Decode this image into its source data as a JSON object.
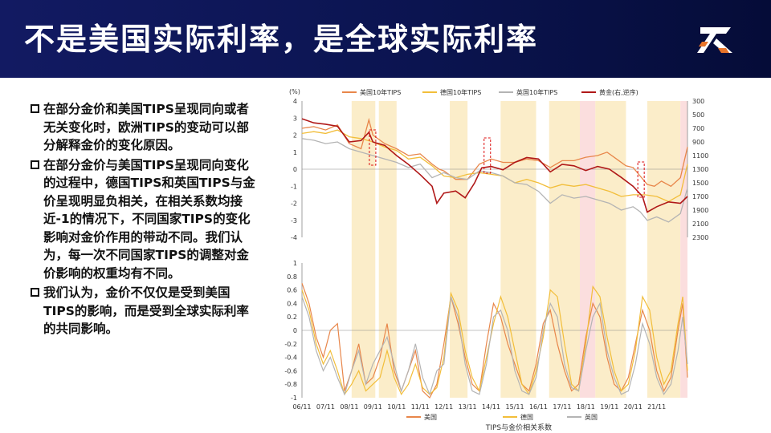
{
  "title": "不是美国实际利率，是全球实际利率",
  "logo_text": "Z",
  "bullets": [
    "在部分金价和美国TIPS呈现同向或者无关变化时，欧洲TIPS的变动可以部分解释金价的变化原因。",
    "在部分金价与美国TIPS呈现同向变化的过程中，德国TIPS和英国TIPS与金价呈现明显负相关，在相关系数均接近-1的情况下，不同国家TIPS的变化影响对金价作用的带动不同。我们认为，每一次不同国家TIPS的调整对金价影响的权重均有不同。",
    "我们认为，金价不仅仅是受到美国TIPS的影响，而是受到全球实际利率的共同影响。"
  ],
  "colors": {
    "header_bg": "#0b1450",
    "us": "#e8864a",
    "de": "#f2be3a",
    "uk": "#b4b4b4",
    "gold": "#b01818",
    "shade_yellow": "#fbedc9",
    "shade_pink": "#fbdede"
  },
  "chart_data": [
    {
      "type": "line",
      "unit_label": "(%)",
      "legend": [
        "美国10年TIPS",
        "德国10年TIPS",
        "英国10年TIPS",
        "黄金(右,逆序)"
      ],
      "x_ticks": [
        "06/11",
        "07/11",
        "08/11",
        "09/11",
        "10/11",
        "11/11",
        "12/11",
        "13/11",
        "14/11",
        "15/11",
        "16/11",
        "17/11",
        "18/11",
        "19/11",
        "20/11",
        "21/11"
      ],
      "y_left_ticks": [
        4,
        3,
        2,
        1,
        0,
        -1,
        -2,
        -3,
        -4
      ],
      "y_right_ticks": [
        300,
        500,
        700,
        900,
        1100,
        1300,
        1500,
        1700,
        1900,
        2100,
        2300
      ],
      "y_left_range": [
        -4,
        4
      ],
      "y_right_range": [
        300,
        2300
      ],
      "y_right_inverted": true,
      "x_range": [
        2006.0,
        2022.3
      ],
      "series": [
        {
          "name": "美国10年TIPS",
          "color_key": "us",
          "x": [
            2006.0,
            2006.5,
            2007.0,
            2007.5,
            2008.0,
            2008.5,
            2008.83,
            2009.0,
            2009.5,
            2010.0,
            2010.5,
            2011.0,
            2011.5,
            2011.8,
            2012.0,
            2012.5,
            2013.0,
            2013.5,
            2014.0,
            2014.5,
            2015.0,
            2015.5,
            2016.0,
            2016.5,
            2017.0,
            2017.5,
            2018.0,
            2018.5,
            2018.9,
            2019.3,
            2019.7,
            2020.0,
            2020.3,
            2020.6,
            2020.9,
            2021.2,
            2021.6,
            2022.0,
            2022.3
          ],
          "y": [
            2.4,
            2.5,
            2.3,
            2.6,
            1.5,
            1.2,
            2.9,
            2.0,
            1.5,
            1.2,
            0.8,
            0.9,
            0.3,
            0.0,
            -0.1,
            -0.6,
            -0.6,
            0.3,
            0.6,
            0.4,
            0.4,
            0.6,
            0.5,
            0.1,
            0.5,
            0.5,
            0.7,
            0.8,
            1.0,
            0.6,
            0.2,
            0.1,
            -0.4,
            -0.9,
            -1.0,
            -0.7,
            -1.0,
            -0.5,
            1.3
          ]
        },
        {
          "name": "德国10年TIPS",
          "color_key": "de",
          "x": [
            2006.0,
            2006.5,
            2007.0,
            2007.5,
            2008.0,
            2008.5,
            2009.0,
            2009.5,
            2010.0,
            2010.5,
            2011.0,
            2011.5,
            2012.0,
            2012.5,
            2013.0,
            2013.5,
            2014.0,
            2014.5,
            2015.0,
            2015.5,
            2016.0,
            2016.5,
            2017.0,
            2017.5,
            2018.0,
            2018.5,
            2019.0,
            2019.5,
            2020.0,
            2020.5,
            2021.0,
            2021.5,
            2022.0,
            2022.3
          ],
          "y": [
            2.1,
            2.2,
            2.1,
            2.3,
            1.9,
            1.8,
            1.6,
            1.3,
            1.1,
            0.6,
            0.7,
            0.2,
            -0.4,
            -0.5,
            -0.3,
            -0.2,
            -0.3,
            -0.4,
            -0.8,
            -0.6,
            -0.8,
            -1.1,
            -0.9,
            -1.0,
            -0.9,
            -1.1,
            -1.3,
            -1.6,
            -1.5,
            -1.5,
            -1.6,
            -1.9,
            -1.5,
            0.3
          ]
        },
        {
          "name": "英国10年TIPS",
          "color_key": "uk",
          "x": [
            2006.0,
            2006.5,
            2007.0,
            2007.5,
            2008.0,
            2008.5,
            2009.0,
            2009.5,
            2010.0,
            2010.5,
            2011.0,
            2011.5,
            2012.0,
            2012.5,
            2013.0,
            2013.5,
            2014.0,
            2014.5,
            2015.0,
            2015.5,
            2016.0,
            2016.5,
            2017.0,
            2017.5,
            2018.0,
            2018.5,
            2019.0,
            2019.5,
            2020.0,
            2020.3,
            2020.6,
            2021.0,
            2021.5,
            2022.0,
            2022.3
          ],
          "y": [
            1.8,
            1.7,
            1.5,
            1.6,
            1.2,
            1.0,
            0.8,
            0.6,
            0.4,
            0.1,
            0.3,
            -0.5,
            -0.2,
            -0.5,
            -0.6,
            -0.1,
            -0.2,
            -0.4,
            -0.8,
            -0.9,
            -1.3,
            -2.0,
            -1.5,
            -1.7,
            -1.6,
            -1.8,
            -2.0,
            -2.4,
            -2.2,
            -2.5,
            -3.0,
            -2.8,
            -3.1,
            -2.6,
            -1.1
          ]
        },
        {
          "name": "黄金(右,逆序)",
          "color_key": "gold",
          "axis": "right",
          "x": [
            2006.0,
            2006.5,
            2007.0,
            2007.5,
            2008.0,
            2008.5,
            2008.83,
            2009.0,
            2009.5,
            2010.0,
            2010.5,
            2011.0,
            2011.5,
            2011.7,
            2012.0,
            2012.5,
            2012.9,
            2013.3,
            2013.6,
            2014.0,
            2014.5,
            2015.0,
            2015.5,
            2016.0,
            2016.5,
            2017.0,
            2017.5,
            2018.0,
            2018.5,
            2019.0,
            2019.5,
            2020.0,
            2020.4,
            2020.6,
            2021.0,
            2021.5,
            2022.0,
            2022.3
          ],
          "y": [
            560,
            620,
            640,
            670,
            900,
            880,
            760,
            900,
            950,
            1100,
            1230,
            1380,
            1550,
            1800,
            1650,
            1620,
            1720,
            1500,
            1280,
            1260,
            1310,
            1200,
            1130,
            1150,
            1340,
            1230,
            1250,
            1320,
            1260,
            1300,
            1420,
            1550,
            1700,
            1930,
            1850,
            1780,
            1800,
            1700
          ]
        }
      ]
    },
    {
      "type": "line",
      "title": "TIPS与金价相关系数",
      "legend": [
        "美国",
        "德国",
        "英国"
      ],
      "y_ticks": [
        1,
        0.8,
        0.6,
        0.4,
        0.2,
        0,
        -0.2,
        -0.4,
        -0.6,
        -0.8,
        -1
      ],
      "y_range": [
        -1,
        1
      ],
      "x_range": [
        2006.0,
        2022.3
      ],
      "shaded_periods_yellow": [
        [
          2008.1,
          2009.1
        ],
        [
          2009.25,
          2010.0
        ],
        [
          2012.25,
          2013.0
        ],
        [
          2014.4,
          2015.9
        ],
        [
          2016.45,
          2017.75
        ],
        [
          2018.4,
          2019.7
        ],
        [
          2020.6,
          2022.0
        ]
      ],
      "shaded_periods_pink": [
        [
          2017.75,
          2018.4
        ],
        [
          2022.0,
          2022.3
        ]
      ],
      "series": [
        {
          "name": "美国",
          "color_key": "us",
          "x": [
            2006.0,
            2006.3,
            2006.6,
            2006.9,
            2007.2,
            2007.5,
            2007.8,
            2008.1,
            2008.4,
            2008.7,
            2009.0,
            2009.3,
            2009.6,
            2009.9,
            2010.2,
            2010.5,
            2010.8,
            2011.1,
            2011.4,
            2011.7,
            2012.0,
            2012.3,
            2012.6,
            2012.9,
            2013.2,
            2013.5,
            2013.8,
            2014.1,
            2014.4,
            2014.7,
            2015.0,
            2015.3,
            2015.6,
            2015.9,
            2016.2,
            2016.5,
            2016.8,
            2017.1,
            2017.4,
            2017.7,
            2018.0,
            2018.3,
            2018.6,
            2018.9,
            2019.2,
            2019.5,
            2019.8,
            2020.1,
            2020.4,
            2020.7,
            2021.0,
            2021.3,
            2021.6,
            2021.9,
            2022.1,
            2022.3
          ],
          "y": [
            0.7,
            0.4,
            -0.1,
            -0.4,
            0.0,
            0.1,
            -0.9,
            -0.6,
            -0.2,
            -0.8,
            -0.7,
            -0.4,
            0.1,
            -0.6,
            -0.9,
            -0.6,
            -0.3,
            -0.9,
            -1.0,
            -0.8,
            -0.2,
            0.5,
            0.1,
            -0.4,
            -0.8,
            -0.9,
            -0.2,
            0.4,
            0.2,
            -0.2,
            -0.5,
            -0.8,
            -0.9,
            -0.5,
            0.1,
            0.3,
            -0.2,
            -0.6,
            -0.9,
            -0.8,
            -0.1,
            0.4,
            0.2,
            -0.4,
            -0.8,
            -0.9,
            -0.7,
            -0.2,
            0.3,
            0.0,
            -0.6,
            -0.9,
            -0.7,
            0.0,
            0.4,
            -0.7
          ]
        },
        {
          "name": "德国",
          "color_key": "de",
          "x": [
            2006.0,
            2006.3,
            2006.6,
            2006.9,
            2007.2,
            2007.5,
            2007.8,
            2008.1,
            2008.4,
            2008.7,
            2009.0,
            2009.3,
            2009.6,
            2009.9,
            2010.2,
            2010.5,
            2010.8,
            2011.1,
            2011.4,
            2011.7,
            2012.0,
            2012.3,
            2012.6,
            2012.9,
            2013.2,
            2013.5,
            2013.8,
            2014.1,
            2014.4,
            2014.7,
            2015.0,
            2015.3,
            2015.6,
            2015.9,
            2016.2,
            2016.5,
            2016.8,
            2017.1,
            2017.4,
            2017.7,
            2018.0,
            2018.3,
            2018.6,
            2018.9,
            2019.2,
            2019.5,
            2019.8,
            2020.1,
            2020.4,
            2020.7,
            2021.0,
            2021.3,
            2021.6,
            2021.9,
            2022.1,
            2022.3
          ],
          "y": [
            0.6,
            0.3,
            -0.2,
            -0.5,
            -0.3,
            -0.6,
            -0.95,
            -0.8,
            -0.6,
            -0.9,
            -0.8,
            -0.7,
            -0.3,
            -0.7,
            -0.95,
            -0.8,
            -0.5,
            -0.85,
            -0.95,
            -0.85,
            -0.4,
            0.55,
            0.3,
            -0.3,
            -0.7,
            -0.9,
            -0.4,
            0.1,
            0.5,
            0.2,
            -0.3,
            -0.8,
            -0.95,
            -0.6,
            -0.1,
            0.6,
            0.5,
            -0.2,
            -0.8,
            -0.9,
            -0.2,
            0.65,
            0.5,
            -0.1,
            -0.6,
            -0.9,
            -0.8,
            -0.3,
            0.5,
            0.3,
            -0.4,
            -0.8,
            -0.6,
            0.1,
            0.5,
            -0.6
          ]
        },
        {
          "name": "英国",
          "color_key": "uk",
          "x": [
            2006.0,
            2006.3,
            2006.6,
            2006.9,
            2007.2,
            2007.5,
            2007.8,
            2008.1,
            2008.4,
            2008.7,
            2009.0,
            2009.3,
            2009.6,
            2009.9,
            2010.2,
            2010.5,
            2010.8,
            2011.1,
            2011.4,
            2011.7,
            2012.0,
            2012.3,
            2012.6,
            2012.9,
            2013.2,
            2013.5,
            2013.8,
            2014.1,
            2014.4,
            2014.7,
            2015.0,
            2015.3,
            2015.6,
            2015.9,
            2016.2,
            2016.5,
            2016.8,
            2017.1,
            2017.4,
            2017.7,
            2018.0,
            2018.3,
            2018.6,
            2018.9,
            2019.2,
            2019.5,
            2019.8,
            2020.1,
            2020.4,
            2020.7,
            2021.0,
            2021.3,
            2021.6,
            2021.9,
            2022.1,
            2022.3
          ],
          "y": [
            0.5,
            0.2,
            -0.3,
            -0.6,
            -0.4,
            -0.7,
            -0.95,
            -0.6,
            -0.3,
            -0.8,
            -0.5,
            -0.3,
            -0.1,
            -0.5,
            -0.9,
            -0.6,
            -0.2,
            -0.7,
            -0.95,
            -0.6,
            -0.5,
            0.5,
            0.2,
            -0.5,
            -0.9,
            -0.95,
            -0.5,
            0.2,
            0.3,
            0.0,
            -0.6,
            -0.9,
            -0.95,
            -0.7,
            0.0,
            0.4,
            0.2,
            -0.5,
            -0.85,
            -0.9,
            -0.3,
            0.2,
            0.4,
            -0.3,
            -0.7,
            -0.95,
            -0.9,
            -0.5,
            0.1,
            -0.2,
            -0.7,
            -0.95,
            -0.8,
            -0.3,
            0.2,
            -0.5
          ]
        }
      ]
    }
  ]
}
